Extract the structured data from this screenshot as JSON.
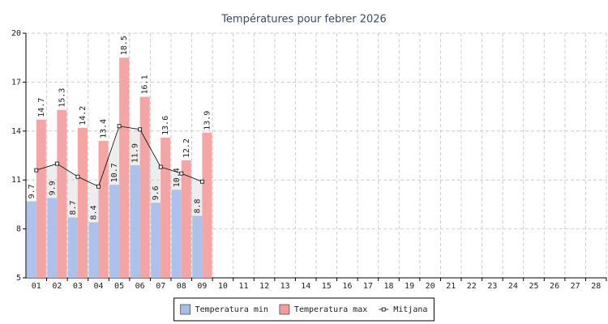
{
  "chart_data": {
    "type": "bar",
    "title": "Températures pour febrer 2026",
    "categories": [
      "01",
      "02",
      "03",
      "04",
      "05",
      "06",
      "07",
      "08",
      "09",
      "10",
      "11",
      "12",
      "13",
      "14",
      "15",
      "16",
      "17",
      "18",
      "19",
      "20",
      "21",
      "22",
      "23",
      "24",
      "25",
      "26",
      "27",
      "28"
    ],
    "series": [
      {
        "name": "Temperatura min",
        "color": "#a4bdec",
        "values": [
          9.7,
          9.9,
          8.7,
          8.4,
          10.7,
          11.9,
          9.6,
          10.4,
          8.8,
          null,
          null,
          null,
          null,
          null,
          null,
          null,
          null,
          null,
          null,
          null,
          null,
          null,
          null,
          null,
          null,
          null,
          null,
          null
        ]
      },
      {
        "name": "Temperatura max",
        "color": "#f59b9b",
        "values": [
          14.7,
          15.3,
          14.2,
          13.4,
          18.5,
          16.1,
          13.6,
          12.2,
          13.9,
          null,
          null,
          null,
          null,
          null,
          null,
          null,
          null,
          null,
          null,
          null,
          null,
          null,
          null,
          null,
          null,
          null,
          null,
          null
        ]
      },
      {
        "name": "Mitjana",
        "color": "#000000",
        "type": "line",
        "values": [
          11.6,
          12.0,
          11.2,
          10.6,
          14.3,
          14.1,
          11.8,
          11.4,
          10.9,
          null,
          null,
          null,
          null,
          null,
          null,
          null,
          null,
          null,
          null,
          null,
          null,
          null,
          null,
          null,
          null,
          null,
          null,
          null
        ]
      }
    ],
    "ylim": [
      5,
      20
    ],
    "yticks": [
      5,
      8,
      11,
      14,
      17,
      20
    ],
    "grid": true
  }
}
